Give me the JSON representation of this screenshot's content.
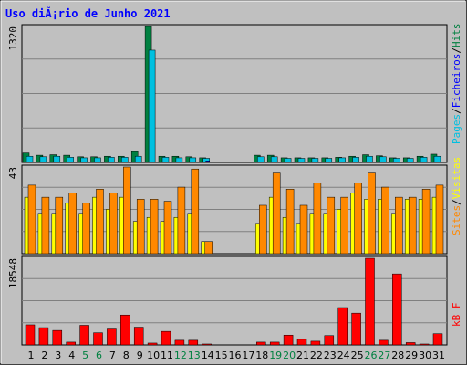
{
  "chart_data": [
    {
      "type": "bar",
      "title": "Uso diÃ¡rio de Junho 2021",
      "ymax_label": "1320",
      "categories": [
        "1",
        "2",
        "3",
        "4",
        "5",
        "6",
        "7",
        "8",
        "9",
        "10",
        "11",
        "12",
        "13",
        "14",
        "15",
        "16",
        "17",
        "18",
        "19",
        "20",
        "21",
        "22",
        "23",
        "24",
        "25",
        "26",
        "27",
        "28",
        "29",
        "30",
        "31"
      ],
      "weekend_days": [
        "5",
        "6",
        "12",
        "13",
        "19",
        "20",
        "26",
        "27"
      ],
      "side_label": {
        "parts": [
          "Pages",
          "/",
          "Ficheiros",
          "/",
          "Hits"
        ]
      },
      "series": [
        {
          "name": "Hits",
          "color": "#008040",
          "values": [
            92,
            70,
            75,
            70,
            55,
            55,
            60,
            60,
            105,
            1320,
            60,
            60,
            55,
            45,
            0,
            0,
            0,
            70,
            70,
            45,
            45,
            45,
            45,
            50,
            60,
            75,
            65,
            45,
            45,
            60,
            80
          ]
        },
        {
          "name": "Ficheiros",
          "color": "#00c0e0",
          "values": [
            60,
            55,
            60,
            50,
            45,
            45,
            50,
            50,
            60,
            1090,
            50,
            45,
            45,
            40,
            0,
            0,
            0,
            55,
            55,
            40,
            40,
            40,
            40,
            45,
            50,
            60,
            55,
            40,
            40,
            50,
            60
          ]
        },
        {
          "name": "Pages",
          "color": "#0000ff",
          "values": [
            0,
            0,
            0,
            0,
            0,
            0,
            0,
            0,
            0,
            0,
            0,
            0,
            0,
            15,
            0,
            0,
            0,
            0,
            0,
            0,
            0,
            0,
            0,
            0,
            0,
            0,
            0,
            0,
            0,
            0,
            0
          ]
        }
      ]
    },
    {
      "type": "bar",
      "ymax_label": "43",
      "side_label": {
        "parts": [
          "Sites",
          "/",
          "Visitas"
        ]
      },
      "series": [
        {
          "name": "Visitas",
          "color": "#ffff00",
          "values": [
            28,
            20,
            20,
            25,
            20,
            28,
            22,
            28,
            16,
            18,
            16,
            18,
            20,
            6,
            0,
            0,
            0,
            15,
            28,
            18,
            15,
            20,
            20,
            22,
            30,
            27,
            27,
            20,
            27,
            27,
            28
          ]
        },
        {
          "name": "Sites",
          "color": "#ff8800",
          "values": [
            34,
            28,
            28,
            30,
            25,
            32,
            30,
            43,
            27,
            27,
            26,
            33,
            42,
            6,
            0,
            0,
            0,
            24,
            40,
            32,
            24,
            35,
            28,
            28,
            35,
            40,
            33,
            28,
            28,
            32,
            34
          ]
        }
      ]
    },
    {
      "type": "bar",
      "ymax_label": "18548",
      "side_label": {
        "parts": [
          "kB F"
        ]
      },
      "series": [
        {
          "name": "kB F",
          "color": "#ff0000",
          "values": [
            4300,
            3700,
            3100,
            600,
            4200,
            2600,
            3400,
            6400,
            3800,
            400,
            2900,
            1000,
            1000,
            200,
            0,
            0,
            0,
            600,
            600,
            2100,
            1200,
            800,
            2000,
            8000,
            6800,
            18548,
            1000,
            15200,
            500,
            200,
            2400
          ]
        }
      ]
    }
  ]
}
